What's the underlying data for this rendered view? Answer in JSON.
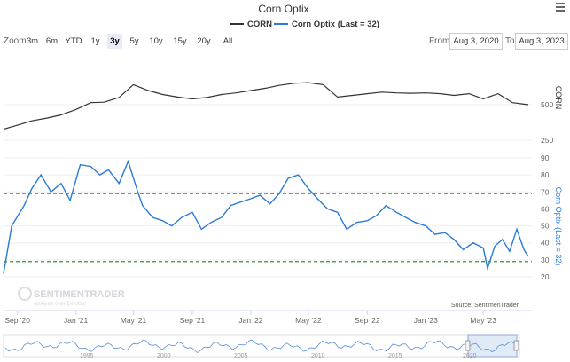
{
  "title": "Corn Optix",
  "legend": [
    {
      "label": "CORN",
      "color": "#333333"
    },
    {
      "label": "Corn Optix (Last = 32)",
      "color": "#2a7bd8"
    }
  ],
  "zoom": {
    "label": "Zoom",
    "buttons": [
      "3m",
      "6m",
      "YTD",
      "1y",
      "3y",
      "5y",
      "10y",
      "15y",
      "20y",
      "All"
    ],
    "active": "3y"
  },
  "range": {
    "from_label": "From",
    "from_value": "Aug 3, 2020",
    "to_label": "To",
    "to_value": "Aug 3, 2023"
  },
  "watermark": {
    "brand": "SENTIMENTRADER",
    "tagline": "Analysis over Emotion"
  },
  "credit": "Source: SentimenTrader",
  "chart_data": [
    {
      "type": "line",
      "name": "CORN",
      "ylabel": "CORN",
      "y_scale": "log",
      "y_ticks": [
        250,
        500
      ],
      "color": "#333333",
      "x": [
        "2020-08-03",
        "2020-09-01",
        "2020-10-01",
        "2020-11-01",
        "2020-12-01",
        "2021-01-01",
        "2021-02-01",
        "2021-03-01",
        "2021-04-01",
        "2021-05-01",
        "2021-06-01",
        "2021-07-01",
        "2021-08-01",
        "2021-09-01",
        "2021-10-01",
        "2021-11-01",
        "2021-12-01",
        "2022-01-01",
        "2022-02-01",
        "2022-03-01",
        "2022-04-01",
        "2022-05-01",
        "2022-06-01",
        "2022-07-01",
        "2022-08-01",
        "2022-09-01",
        "2022-10-01",
        "2022-11-01",
        "2022-12-01",
        "2023-01-01",
        "2023-02-01",
        "2023-03-01",
        "2023-04-01",
        "2023-05-01",
        "2023-06-01",
        "2023-07-01",
        "2023-08-03"
      ],
      "y": [
        310,
        335,
        365,
        385,
        410,
        455,
        520,
        525,
        575,
        740,
        660,
        610,
        580,
        560,
        575,
        610,
        630,
        660,
        690,
        730,
        760,
        770,
        740,
        580,
        600,
        620,
        640,
        630,
        625,
        630,
        620,
        600,
        620,
        560,
        620,
        520,
        500
      ]
    },
    {
      "type": "line",
      "name": "Corn Optix (Last = 32)",
      "ylabel": "Corn Optix (Last = 32)",
      "ylim": [
        20,
        90
      ],
      "y_ticks": [
        20,
        30,
        40,
        50,
        60,
        70,
        80,
        90
      ],
      "color": "#2a7bd8",
      "x_tick_labels": [
        "Sep '20",
        "Jan '21",
        "May '21",
        "Sep '21",
        "Jan '22",
        "May '22",
        "Sep '22",
        "Jan '23",
        "May '23"
      ],
      "reference_lines": [
        {
          "value": 69,
          "color": "#e03030"
        },
        {
          "value": 29,
          "color": "#2a9a2a"
        }
      ],
      "x": [
        "2020-08-03",
        "2020-08-20",
        "2020-09-15",
        "2020-10-01",
        "2020-10-20",
        "2020-11-10",
        "2020-12-01",
        "2020-12-20",
        "2021-01-10",
        "2021-02-01",
        "2021-02-20",
        "2021-03-10",
        "2021-04-01",
        "2021-04-20",
        "2021-05-10",
        "2021-05-20",
        "2021-06-10",
        "2021-07-01",
        "2021-07-20",
        "2021-08-10",
        "2021-09-01",
        "2021-09-20",
        "2021-10-10",
        "2021-11-01",
        "2021-11-20",
        "2021-12-10",
        "2022-01-01",
        "2022-01-20",
        "2022-02-10",
        "2022-03-01",
        "2022-03-20",
        "2022-04-10",
        "2022-05-01",
        "2022-05-20",
        "2022-06-10",
        "2022-07-01",
        "2022-07-20",
        "2022-08-10",
        "2022-09-01",
        "2022-09-20",
        "2022-10-10",
        "2022-11-01",
        "2022-11-20",
        "2022-12-10",
        "2023-01-01",
        "2023-01-20",
        "2023-02-10",
        "2023-03-01",
        "2023-03-20",
        "2023-04-10",
        "2023-05-01",
        "2023-05-10",
        "2023-05-25",
        "2023-06-10",
        "2023-06-25",
        "2023-07-10",
        "2023-07-25",
        "2023-08-03"
      ],
      "y": [
        22,
        50,
        62,
        72,
        80,
        70,
        75,
        65,
        86,
        85,
        80,
        83,
        75,
        88,
        70,
        62,
        55,
        53,
        50,
        55,
        58,
        48,
        52,
        55,
        62,
        64,
        66,
        68,
        63,
        69,
        78,
        80,
        72,
        66,
        60,
        58,
        48,
        52,
        53,
        56,
        62,
        58,
        55,
        52,
        50,
        45,
        46,
        42,
        36,
        40,
        37,
        25,
        38,
        42,
        35,
        48,
        36,
        32
      ]
    }
  ],
  "navigator": {
    "labels": [
      "1995",
      "2000",
      "2005",
      "2010",
      "2015",
      "2020"
    ]
  }
}
